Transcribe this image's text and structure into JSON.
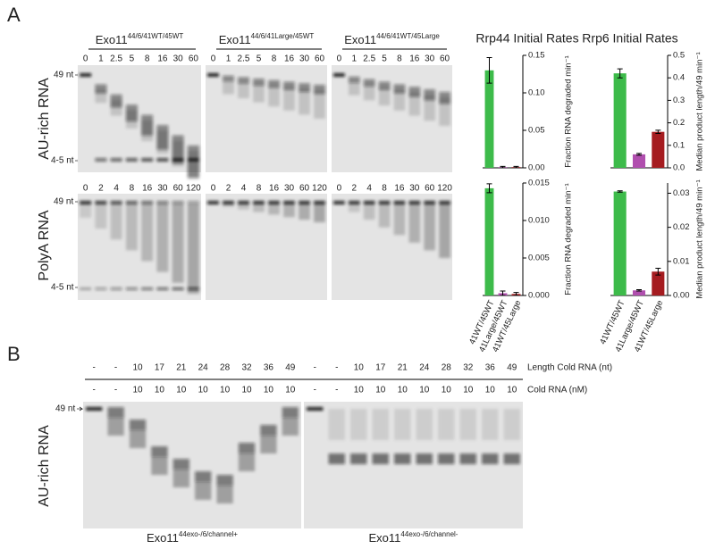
{
  "panel_a": {
    "label": "A",
    "gels": [
      {
        "title_main": "Exo11",
        "title_sup": "44/6/41WT/45WT"
      },
      {
        "title_main": "Exo11",
        "title_sup": "44/6/41Large/45WT"
      },
      {
        "title_main": "Exo11",
        "title_sup": "44/6/41WT/45Large"
      }
    ],
    "au_lanes": [
      "0",
      "1",
      "2.5",
      "5",
      "8",
      "16",
      "30",
      "60"
    ],
    "polya_lanes": [
      "0",
      "2",
      "4",
      "8",
      "16",
      "30",
      "60",
      "120"
    ],
    "row_labels": [
      "AU-rich RNA",
      "PolyA RNA"
    ],
    "marker_top": "49 nt",
    "marker_bottom": "4-5 nt"
  },
  "chart_data": [
    {
      "type": "bar",
      "title": "Rrp44 Initial Rates",
      "ylabel": "Fraction RNA degraded min⁻¹",
      "categories": [
        null,
        null,
        null
      ],
      "values": [
        0.13,
        0.001,
        0.001
      ],
      "errors": [
        0.017,
        0.001,
        0.001
      ],
      "colors": [
        "#3dbb4a",
        "#b04fae",
        "#a51c20"
      ],
      "ylim": [
        0,
        0.15
      ],
      "yticks": [
        {
          "value": 0,
          "label": "0.00"
        },
        {
          "value": 0.05,
          "label": "0.05"
        },
        {
          "value": 0.1,
          "label": "0.10"
        },
        {
          "value": 0.15,
          "label": "0.15"
        }
      ]
    },
    {
      "type": "bar",
      "title": "Rrp6 Initial Rates",
      "ylabel": "Median product length/49 min⁻¹",
      "categories": [
        null,
        null,
        null
      ],
      "values": [
        0.42,
        0.06,
        0.16
      ],
      "errors": [
        0.02,
        0.004,
        0.007
      ],
      "colors": [
        "#3dbb4a",
        "#b04fae",
        "#a51c20"
      ],
      "ylim": [
        0,
        0.5
      ],
      "yticks": [
        {
          "value": 0,
          "label": "0.0"
        },
        0.1,
        0.2,
        0.3,
        0.4,
        0.5
      ]
    },
    {
      "type": "bar",
      "ylabel": "Fraction RNA degraded min⁻¹",
      "categories": [
        "41WT/45WT",
        "41Large/45WT",
        "41WT/45Large"
      ],
      "values": [
        0.0143,
        0.0003,
        0.0002
      ],
      "errors": [
        0.0006,
        0.0003,
        0.0002
      ],
      "colors": [
        "#3dbb4a",
        "#b04fae",
        "#a51c20"
      ],
      "ylim": [
        0,
        0.015
      ],
      "yticks": [
        {
          "value": 0,
          "label": "0.000"
        },
        0.005,
        {
          "value": 0.01,
          "label": "0.010"
        },
        0.015
      ]
    },
    {
      "type": "bar",
      "ylabel": "Median product length/49 min⁻¹",
      "categories": [
        "41WT/45WT",
        "41Large/45WT",
        "41WT/45Large"
      ],
      "values": [
        0.0305,
        0.0015,
        0.007
      ],
      "errors": [
        0.0002,
        0.0002,
        0.001
      ],
      "colors": [
        "#3dbb4a",
        "#b04fae",
        "#a51c20"
      ],
      "ylim": [
        0,
        0.033
      ],
      "yticks": [
        {
          "value": 0,
          "label": "0.00"
        },
        0.01,
        0.02,
        0.03
      ]
    }
  ],
  "panel_b": {
    "label": "B",
    "length_row": [
      "-",
      "-",
      "10",
      "17",
      "21",
      "24",
      "28",
      "32",
      "36",
      "49"
    ],
    "length_label": "Length Cold RNA (nt)",
    "conc_row": [
      "-",
      "-",
      "10",
      "10",
      "10",
      "10",
      "10",
      "10",
      "10",
      "10"
    ],
    "conc_label": "Cold RNA (nM)",
    "row_label": "AU-rich RNA",
    "marker": "49 nt",
    "gels": [
      {
        "title_main": "Exo11",
        "title_sup": "44exo-/6/channel+"
      },
      {
        "title_main": "Exo11",
        "title_sup": "44exo-/6/channel-"
      }
    ]
  }
}
